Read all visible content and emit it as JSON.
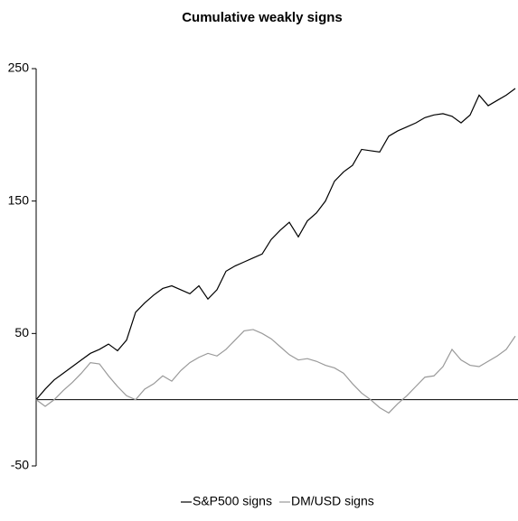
{
  "chart_data": {
    "type": "line",
    "title": "Cumulative weakly signs",
    "ylim": [
      -50,
      250
    ],
    "yticks": [
      -50,
      50,
      150,
      250
    ],
    "legend": "bottom",
    "series": [
      {
        "name": "S&P500 signs",
        "color": "#000000",
        "values": [
          0,
          8,
          15,
          20,
          25,
          30,
          35,
          38,
          42,
          37,
          45,
          66,
          73,
          79,
          84,
          86,
          83,
          80,
          86,
          76,
          83,
          97,
          101,
          104,
          107,
          110,
          121,
          128,
          134,
          123,
          135,
          141,
          150,
          165,
          172,
          177,
          189,
          188,
          187,
          199,
          203,
          206,
          209,
          213,
          215,
          216,
          214,
          209,
          215,
          230,
          222,
          226,
          230,
          235
        ]
      },
      {
        "name": "DM/USD signs",
        "color": "#999999",
        "values": [
          0,
          -5,
          0,
          7,
          13,
          20,
          28,
          27,
          18,
          10,
          3,
          0,
          8,
          12,
          18,
          14,
          22,
          28,
          32,
          35,
          33,
          38,
          45,
          52,
          53,
          50,
          46,
          40,
          34,
          30,
          31,
          29,
          26,
          24,
          20,
          12,
          5,
          0,
          -6,
          -10,
          -3,
          3,
          10,
          17,
          18,
          25,
          38,
          30,
          26,
          25,
          29,
          33,
          38,
          48
        ]
      }
    ]
  }
}
